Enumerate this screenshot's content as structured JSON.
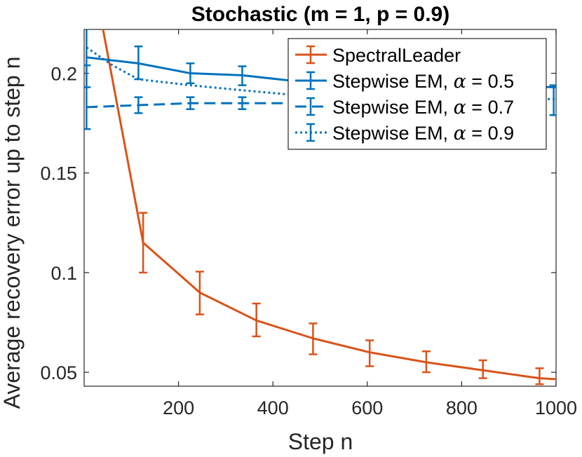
{
  "chart_data": {
    "type": "line",
    "title": "Stochastic (m = 1, p = 0.9)",
    "xlabel": "Step n",
    "ylabel": "Average recovery error up to step n",
    "xlim": [
      0,
      1000
    ],
    "ylim": [
      0.043,
      0.222
    ],
    "xticks": [
      200,
      400,
      600,
      800,
      1000
    ],
    "xtick_labels": [
      "200",
      "400",
      "600",
      "800",
      "1000"
    ],
    "yticks": [
      0.05,
      0.1,
      0.15,
      0.2
    ],
    "ytick_labels": [
      "0.05",
      "0.1",
      "0.15",
      "0.2"
    ],
    "legend_position": "top-right",
    "series": [
      {
        "name": "SpectralLeader",
        "legend_prefix": "SpectralLeader",
        "legend_alpha": "",
        "color": "#D95319",
        "dash": "solid",
        "x": [
          40,
          125,
          245,
          365,
          485,
          605,
          725,
          845,
          965,
          1000
        ],
        "y": [
          0.222,
          0.115,
          0.09,
          0.076,
          0.067,
          0.06,
          0.055,
          0.051,
          0.047,
          0.0465
        ],
        "err_x": [
          125,
          245,
          365,
          485,
          605,
          725,
          845,
          965
        ],
        "err_y": [
          0.115,
          0.09,
          0.076,
          0.067,
          0.06,
          0.055,
          0.051,
          0.047
        ],
        "err_lo": [
          0.1,
          0.079,
          0.068,
          0.059,
          0.053,
          0.05,
          0.047,
          0.044
        ],
        "err_hi": [
          0.13,
          0.1005,
          0.0845,
          0.0745,
          0.066,
          0.0605,
          0.056,
          0.052
        ]
      },
      {
        "name": "Stepwise EM, alpha = 0.5",
        "legend_prefix": "Stepwise EM, ",
        "legend_alpha": "α",
        "legend_suffix": " = 0.5",
        "color": "#0072BD",
        "dash": "solid",
        "x": [
          5,
          115,
          225,
          335,
          450,
          1000
        ],
        "y": [
          0.208,
          0.205,
          0.2,
          0.199,
          0.196,
          0.193
        ],
        "err_x": [
          5,
          115,
          225,
          335
        ],
        "err_y": [
          0.208,
          0.205,
          0.2,
          0.199
        ],
        "err_lo": [
          0.193,
          0.197,
          0.195,
          0.194
        ],
        "err_hi": [
          0.223,
          0.2135,
          0.205,
          0.2035
        ]
      },
      {
        "name": "Stepwise EM, alpha = 0.7",
        "legend_prefix": "Stepwise EM, ",
        "legend_alpha": "α",
        "legend_suffix": " = 0.7",
        "color": "#0072BD",
        "dash": "dashed",
        "x": [
          5,
          115,
          225,
          335,
          450
        ],
        "y": [
          0.183,
          0.184,
          0.185,
          0.185,
          0.185
        ],
        "err_x": [
          5,
          115,
          225,
          335
        ],
        "err_y": [
          0.183,
          0.184,
          0.185,
          0.185
        ],
        "err_lo": [
          0.172,
          0.18,
          0.182,
          0.182
        ],
        "err_hi": [
          0.204,
          0.188,
          0.188,
          0.188
        ]
      },
      {
        "name": "Stepwise EM, alpha = 0.9",
        "legend_prefix": "Stepwise EM, ",
        "legend_alpha": "α",
        "legend_suffix": " = 0.9",
        "color": "#0072BD",
        "dash": "dotted",
        "x": [
          5,
          60,
          115,
          225,
          335,
          450,
          1000
        ],
        "y": [
          0.213,
          0.204,
          0.197,
          0.194,
          0.1915,
          0.189,
          0.187
        ],
        "err_x": [
          995
        ],
        "err_y": [
          0.187
        ],
        "err_lo": [
          0.179
        ],
        "err_hi": [
          0.194
        ]
      }
    ]
  }
}
